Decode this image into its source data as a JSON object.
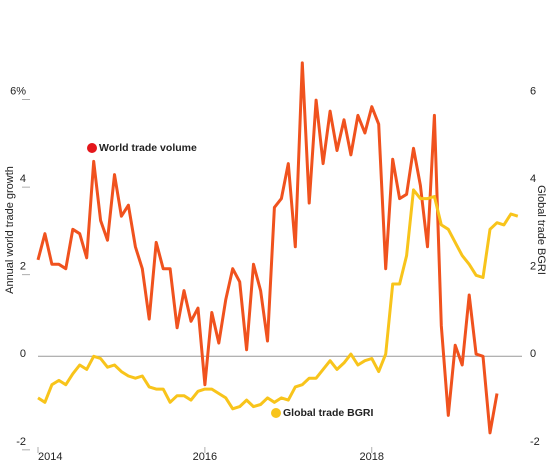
{
  "chart_data": {
    "type": "line",
    "y_label": "Annual world trade growth",
    "y2_label": "Global trade BGRI",
    "x": [
      2014,
      2014.083,
      2014.167,
      2014.25,
      2014.333,
      2014.417,
      2014.5,
      2014.583,
      2014.667,
      2014.75,
      2014.833,
      2014.917,
      2015,
      2015.083,
      2015.167,
      2015.25,
      2015.333,
      2015.417,
      2015.5,
      2015.583,
      2015.667,
      2015.75,
      2015.833,
      2015.917,
      2016,
      2016.083,
      2016.167,
      2016.25,
      2016.333,
      2016.417,
      2016.5,
      2016.583,
      2016.667,
      2016.75,
      2016.833,
      2016.917,
      2017,
      2017.083,
      2017.167,
      2017.25,
      2017.333,
      2017.417,
      2017.5,
      2017.583,
      2017.667,
      2017.75,
      2017.833,
      2017.917,
      2018,
      2018.083,
      2018.167,
      2018.25,
      2018.333,
      2018.417,
      2018.5,
      2018.583,
      2018.667,
      2018.75,
      2018.833,
      2018.917,
      2019,
      2019.083,
      2019.167,
      2019.25,
      2019.333,
      2019.417,
      2019.5,
      2019.583,
      2019.667,
      2019.75
    ],
    "series": [
      {
        "name": "World trade volume",
        "color": "#f0521e",
        "legend_color": "#e4161b",
        "values": [
          2.2,
          2.8,
          2.1,
          2.1,
          2.0,
          2.9,
          2.8,
          2.25,
          4.45,
          3.1,
          2.65,
          4.15,
          3.2,
          3.45,
          2.5,
          2.0,
          0.85,
          2.6,
          2.0,
          2.0,
          0.65,
          1.5,
          0.8,
          1.1,
          -0.65,
          1.0,
          0.3,
          1.3,
          2.0,
          1.7,
          0.15,
          2.1,
          1.5,
          0.35,
          3.4,
          3.6,
          4.4,
          2.5,
          6.7,
          3.5,
          5.85,
          4.4,
          5.6,
          4.7,
          5.4,
          4.6,
          5.5,
          5.1,
          5.7,
          5.3,
          2.0,
          4.5,
          3.6,
          3.7,
          4.75,
          3.9,
          2.5,
          5.5,
          0.7,
          -1.35,
          0.25,
          -0.2,
          1.4,
          0.05,
          0.0,
          -1.75,
          -0.85,
          null,
          null,
          null
        ]
      },
      {
        "name": "Global trade BGRI",
        "color": "#f8c41b",
        "legend_color": "#f8c41b",
        "axis": "y2",
        "values": [
          -0.95,
          -1.05,
          -0.65,
          -0.55,
          -0.65,
          -0.4,
          -0.2,
          -0.3,
          0.0,
          -0.05,
          -0.25,
          -0.2,
          -0.35,
          -0.45,
          -0.5,
          -0.45,
          -0.7,
          -0.75,
          -0.75,
          -1.05,
          -0.9,
          -0.9,
          -1.0,
          -0.8,
          -0.75,
          -0.75,
          -0.85,
          -0.95,
          -1.2,
          -1.15,
          -1.0,
          -1.15,
          -1.1,
          -0.95,
          -1.05,
          -0.95,
          -1.0,
          -0.7,
          -0.65,
          -0.5,
          -0.5,
          -0.3,
          -0.1,
          -0.3,
          -0.15,
          0.05,
          -0.2,
          -0.1,
          -0.05,
          -0.35,
          0.05,
          1.65,
          1.65,
          2.3,
          3.8,
          3.6,
          3.6,
          3.65,
          3.0,
          2.9,
          2.6,
          2.3,
          2.1,
          1.85,
          1.8,
          2.9,
          3.05,
          3.0,
          3.25,
          3.2
        ]
      }
    ],
    "xlim": [
      2014,
      2019.8
    ],
    "xticks": [
      2014,
      2016,
      2018
    ],
    "ylim": [
      -2.3,
      7.2
    ],
    "yticks": [
      {
        "value": 6,
        "label": "6%"
      },
      4,
      2,
      0,
      -2
    ],
    "y2lim": [
      -2.3,
      7.2
    ],
    "y2ticks": [
      6,
      4,
      2,
      0,
      -2
    ]
  }
}
